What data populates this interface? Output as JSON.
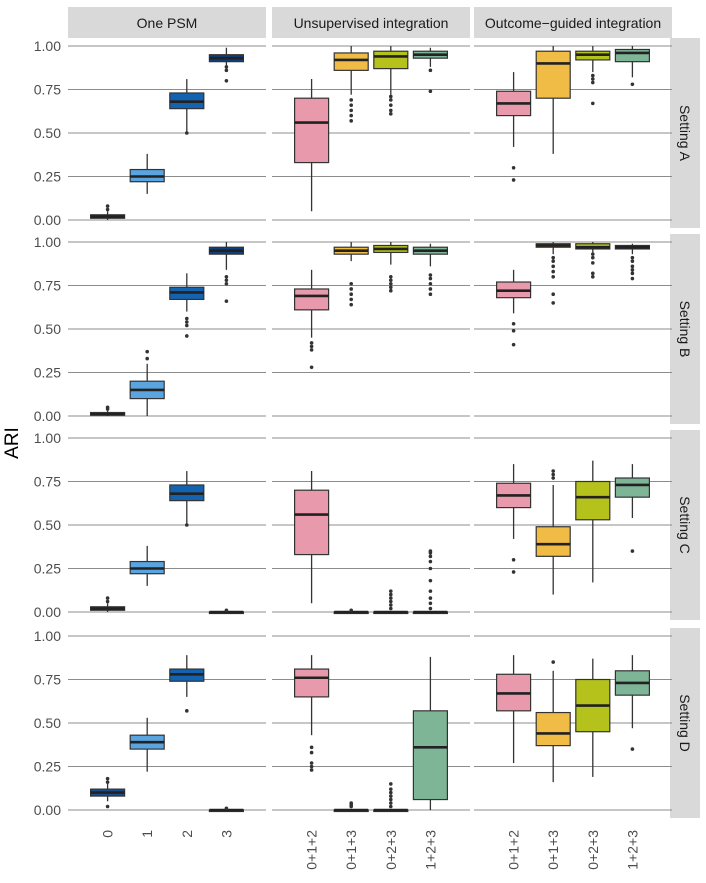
{
  "chart_data": {
    "type": "box",
    "ylabel": "ARI",
    "ylim": [
      0,
      1
    ],
    "y_ticks": [
      "0.00",
      "0.25",
      "0.50",
      "0.75",
      "1.00"
    ],
    "grid": true,
    "columns": [
      {
        "title": "One PSM",
        "categories": [
          "0",
          "1",
          "2",
          "3"
        ]
      },
      {
        "title": "Unsupervised integration",
        "categories": [
          "0+1+2",
          "0+1+3",
          "0+2+3",
          "1+2+3"
        ]
      },
      {
        "title": "Outcome−guided integration",
        "categories": [
          "0+1+2",
          "0+1+3",
          "0+2+3",
          "1+2+3"
        ]
      }
    ],
    "rows": [
      "Setting A",
      "Setting B",
      "Setting C",
      "Setting D"
    ],
    "colors": {
      "one_psm": [
        "#1d4e8c",
        "#5aa5e0",
        "#1463b0",
        "#0f3f7c"
      ],
      "integration": [
        "#e899ab",
        "#f1bc45",
        "#b4c21b",
        "#7fb597"
      ],
      "grid": "#8c8c8c",
      "strip": "#d9d9d9"
    },
    "panels": [
      [
        [
          {
            "min": 0.0,
            "q1": 0.01,
            "median": 0.02,
            "q3": 0.03,
            "max": 0.05,
            "outliers": [
              0.06,
              0.08
            ]
          },
          {
            "min": 0.15,
            "q1": 0.22,
            "median": 0.25,
            "q3": 0.29,
            "max": 0.38,
            "outliers": []
          },
          {
            "min": 0.5,
            "q1": 0.64,
            "median": 0.68,
            "q3": 0.73,
            "max": 0.81,
            "outliers": [
              0.5
            ]
          },
          {
            "min": 0.86,
            "q1": 0.91,
            "median": 0.93,
            "q3": 0.95,
            "max": 0.99,
            "outliers": [
              0.8,
              0.86,
              0.88
            ]
          }
        ],
        [
          {
            "min": 0.05,
            "q1": 0.33,
            "median": 0.56,
            "q3": 0.7,
            "max": 0.81,
            "outliers": []
          },
          {
            "min": 0.72,
            "q1": 0.86,
            "median": 0.92,
            "q3": 0.96,
            "max": 1.0,
            "outliers": [
              0.57,
              0.6,
              0.63,
              0.66,
              0.69
            ]
          },
          {
            "min": 0.72,
            "q1": 0.87,
            "median": 0.94,
            "q3": 0.97,
            "max": 1.0,
            "outliers": [
              0.61,
              0.63,
              0.66,
              0.69,
              0.71
            ]
          },
          {
            "min": 0.88,
            "q1": 0.93,
            "median": 0.95,
            "q3": 0.97,
            "max": 0.99,
            "outliers": [
              0.74,
              0.86
            ]
          }
        ],
        [
          {
            "min": 0.42,
            "q1": 0.6,
            "median": 0.67,
            "q3": 0.74,
            "max": 0.85,
            "outliers": [
              0.23,
              0.3
            ]
          },
          {
            "min": 0.38,
            "q1": 0.7,
            "median": 0.9,
            "q3": 0.97,
            "max": 1.0,
            "outliers": []
          },
          {
            "min": 0.85,
            "q1": 0.92,
            "median": 0.95,
            "q3": 0.97,
            "max": 1.0,
            "outliers": [
              0.67,
              0.79,
              0.81,
              0.83
            ]
          },
          {
            "min": 0.82,
            "q1": 0.91,
            "median": 0.96,
            "q3": 0.98,
            "max": 1.0,
            "outliers": [
              0.78
            ]
          }
        ]
      ],
      [
        [
          {
            "min": 0.0,
            "q1": 0.005,
            "median": 0.01,
            "q3": 0.02,
            "max": 0.03,
            "outliers": [
              0.04,
              0.05
            ]
          },
          {
            "min": 0.0,
            "q1": 0.1,
            "median": 0.15,
            "q3": 0.2,
            "max": 0.3,
            "outliers": [
              0.33,
              0.37
            ]
          },
          {
            "min": 0.6,
            "q1": 0.67,
            "median": 0.71,
            "q3": 0.74,
            "max": 0.82,
            "outliers": [
              0.46,
              0.52,
              0.54,
              0.56
            ]
          },
          {
            "min": 0.84,
            "q1": 0.93,
            "median": 0.95,
            "q3": 0.97,
            "max": 1.0,
            "outliers": [
              0.66,
              0.76,
              0.78,
              0.8
            ]
          }
        ],
        [
          {
            "min": 0.45,
            "q1": 0.61,
            "median": 0.69,
            "q3": 0.73,
            "max": 0.84,
            "outliers": [
              0.28,
              0.38,
              0.4,
              0.42
            ]
          },
          {
            "min": 0.89,
            "q1": 0.93,
            "median": 0.95,
            "q3": 0.97,
            "max": 1.0,
            "outliers": [
              0.64,
              0.67,
              0.7,
              0.73,
              0.76
            ]
          },
          {
            "min": 0.87,
            "q1": 0.94,
            "median": 0.96,
            "q3": 0.98,
            "max": 1.0,
            "outliers": [
              0.72,
              0.74,
              0.76,
              0.78,
              0.8
            ]
          },
          {
            "min": 0.86,
            "q1": 0.93,
            "median": 0.95,
            "q3": 0.97,
            "max": 0.99,
            "outliers": [
              0.7,
              0.73,
              0.76,
              0.79,
              0.81
            ]
          }
        ],
        [
          {
            "min": 0.59,
            "q1": 0.68,
            "median": 0.72,
            "q3": 0.77,
            "max": 0.84,
            "outliers": [
              0.41,
              0.49,
              0.53
            ]
          },
          {
            "min": 0.93,
            "q1": 0.97,
            "median": 0.98,
            "q3": 0.99,
            "max": 1.0,
            "outliers": [
              0.65,
              0.7,
              0.8,
              0.83,
              0.86,
              0.89,
              0.91
            ]
          },
          {
            "min": 0.94,
            "q1": 0.96,
            "median": 0.97,
            "q3": 0.99,
            "max": 1.0,
            "outliers": [
              0.8,
              0.82,
              0.88,
              0.91,
              0.93
            ]
          },
          {
            "min": 0.93,
            "q1": 0.96,
            "median": 0.97,
            "q3": 0.98,
            "max": 0.99,
            "outliers": [
              0.79,
              0.82,
              0.84,
              0.86,
              0.89,
              0.91
            ]
          }
        ]
      ],
      [
        [
          {
            "min": 0.0,
            "q1": 0.01,
            "median": 0.02,
            "q3": 0.03,
            "max": 0.05,
            "outliers": [
              0.06,
              0.08
            ]
          },
          {
            "min": 0.15,
            "q1": 0.22,
            "median": 0.25,
            "q3": 0.29,
            "max": 0.38,
            "outliers": []
          },
          {
            "min": 0.5,
            "q1": 0.64,
            "median": 0.68,
            "q3": 0.73,
            "max": 0.81,
            "outliers": [
              0.5
            ]
          },
          {
            "min": 0.0,
            "q1": 0.0,
            "median": 0.0,
            "q3": 0.0,
            "max": 0.0,
            "outliers": [
              0.01
            ]
          }
        ],
        [
          {
            "min": 0.05,
            "q1": 0.33,
            "median": 0.56,
            "q3": 0.7,
            "max": 0.81,
            "outliers": []
          },
          {
            "min": 0.0,
            "q1": 0.0,
            "median": 0.0,
            "q3": 0.0,
            "max": 0.0,
            "outliers": [
              0.01
            ]
          },
          {
            "min": 0.0,
            "q1": 0.0,
            "median": 0.0,
            "q3": 0.0,
            "max": 0.0,
            "outliers": [
              0.02,
              0.04,
              0.06,
              0.08,
              0.1,
              0.12
            ]
          },
          {
            "min": 0.0,
            "q1": 0.0,
            "median": 0.0,
            "q3": 0.0,
            "max": 0.0,
            "outliers": [
              0.02,
              0.05,
              0.08,
              0.12,
              0.18,
              0.25,
              0.29,
              0.32,
              0.34,
              0.35
            ]
          }
        ],
        [
          {
            "min": 0.42,
            "q1": 0.6,
            "median": 0.67,
            "q3": 0.74,
            "max": 0.85,
            "outliers": [
              0.23,
              0.3
            ]
          },
          {
            "min": 0.1,
            "q1": 0.32,
            "median": 0.39,
            "q3": 0.49,
            "max": 0.73,
            "outliers": [
              0.77,
              0.79,
              0.81
            ]
          },
          {
            "min": 0.17,
            "q1": 0.53,
            "median": 0.66,
            "q3": 0.75,
            "max": 0.87,
            "outliers": []
          },
          {
            "min": 0.54,
            "q1": 0.66,
            "median": 0.73,
            "q3": 0.77,
            "max": 0.85,
            "outliers": [
              0.35
            ]
          }
        ]
      ],
      [
        [
          {
            "min": 0.05,
            "q1": 0.08,
            "median": 0.1,
            "q3": 0.12,
            "max": 0.15,
            "outliers": [
              0.02,
              0.16,
              0.18
            ]
          },
          {
            "min": 0.22,
            "q1": 0.35,
            "median": 0.39,
            "q3": 0.43,
            "max": 0.53,
            "outliers": []
          },
          {
            "min": 0.65,
            "q1": 0.74,
            "median": 0.78,
            "q3": 0.81,
            "max": 0.89,
            "outliers": [
              0.57
            ]
          },
          {
            "min": 0.0,
            "q1": 0.0,
            "median": 0.0,
            "q3": 0.0,
            "max": 0.0,
            "outliers": [
              0.01
            ]
          }
        ],
        [
          {
            "min": 0.43,
            "q1": 0.65,
            "median": 0.76,
            "q3": 0.81,
            "max": 0.89,
            "outliers": [
              0.23,
              0.25,
              0.27,
              0.33,
              0.36
            ]
          },
          {
            "min": 0.0,
            "q1": 0.0,
            "median": 0.0,
            "q3": 0.0,
            "max": 0.0,
            "outliers": [
              0.02,
              0.03,
              0.04
            ]
          },
          {
            "min": 0.0,
            "q1": 0.0,
            "median": 0.0,
            "q3": 0.0,
            "max": 0.0,
            "outliers": [
              0.02,
              0.04,
              0.06,
              0.08,
              0.1,
              0.12,
              0.15
            ]
          },
          {
            "min": 0.0,
            "q1": 0.06,
            "median": 0.36,
            "q3": 0.57,
            "max": 0.88,
            "outliers": []
          }
        ],
        [
          {
            "min": 0.27,
            "q1": 0.57,
            "median": 0.67,
            "q3": 0.78,
            "max": 0.89,
            "outliers": []
          },
          {
            "min": 0.16,
            "q1": 0.37,
            "median": 0.44,
            "q3": 0.56,
            "max": 0.8,
            "outliers": [
              0.85
            ]
          },
          {
            "min": 0.19,
            "q1": 0.45,
            "median": 0.6,
            "q3": 0.75,
            "max": 0.87,
            "outliers": []
          },
          {
            "min": 0.47,
            "q1": 0.66,
            "median": 0.73,
            "q3": 0.8,
            "max": 0.89,
            "outliers": [
              0.35
            ]
          }
        ]
      ]
    ]
  }
}
